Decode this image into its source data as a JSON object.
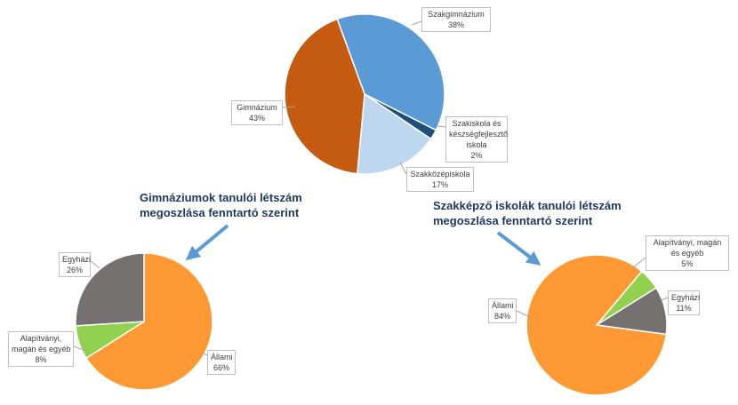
{
  "chart_data": [
    {
      "type": "pie",
      "id": "main",
      "slices": [
        {
          "label": "Szakgimnázium",
          "value": 38,
          "pct_label": "38%",
          "color": "#5b9bd5"
        },
        {
          "label": "Szakiskola és készségfejlesztő iskola",
          "label_lines": [
            "Szakiskola és",
            "készségfejlesztő",
            "iskola"
          ],
          "value": 2,
          "pct_label": "2%",
          "color": "#1f4e79"
        },
        {
          "label": "Szakközépiskola",
          "value": 17,
          "pct_label": "17%",
          "color": "#bdd7ee"
        },
        {
          "label": "Gimnázium",
          "value": 43,
          "pct_label": "43%",
          "color": "#c55a11"
        }
      ]
    },
    {
      "type": "pie",
      "id": "gimnazium",
      "title_lines": [
        "Gimnáziumok tanulói létszám",
        "megoszlása fenntartó szerint"
      ],
      "slices": [
        {
          "label": "Állami",
          "value": 66,
          "pct_label": "66%",
          "color": "#ff9933"
        },
        {
          "label": "Alapítványi, magán és egyéb",
          "label_lines": [
            "Alapítványi,",
            "magán és egyéb"
          ],
          "value": 8,
          "pct_label": "8%",
          "color": "#92d050"
        },
        {
          "label": "Egyházi",
          "value": 26,
          "pct_label": "26%",
          "color": "#767171"
        }
      ]
    },
    {
      "type": "pie",
      "id": "szakkepzo",
      "title_lines": [
        "Szakképző iskolák tanulói létszám",
        "megoszlása fenntartó szerint"
      ],
      "slices": [
        {
          "label": "Alapítványi, magán és egyéb",
          "label_lines": [
            "Alapítványi, magán",
            "és egyéb"
          ],
          "value": 5,
          "pct_label": "5%",
          "color": "#92d050"
        },
        {
          "label": "Egyházi",
          "value": 11,
          "pct_label": "11%",
          "color": "#767171"
        },
        {
          "label": "Állami",
          "value": 84,
          "pct_label": "84%",
          "color": "#ff9933"
        }
      ]
    }
  ],
  "arrow_color": "#5b9bd5"
}
